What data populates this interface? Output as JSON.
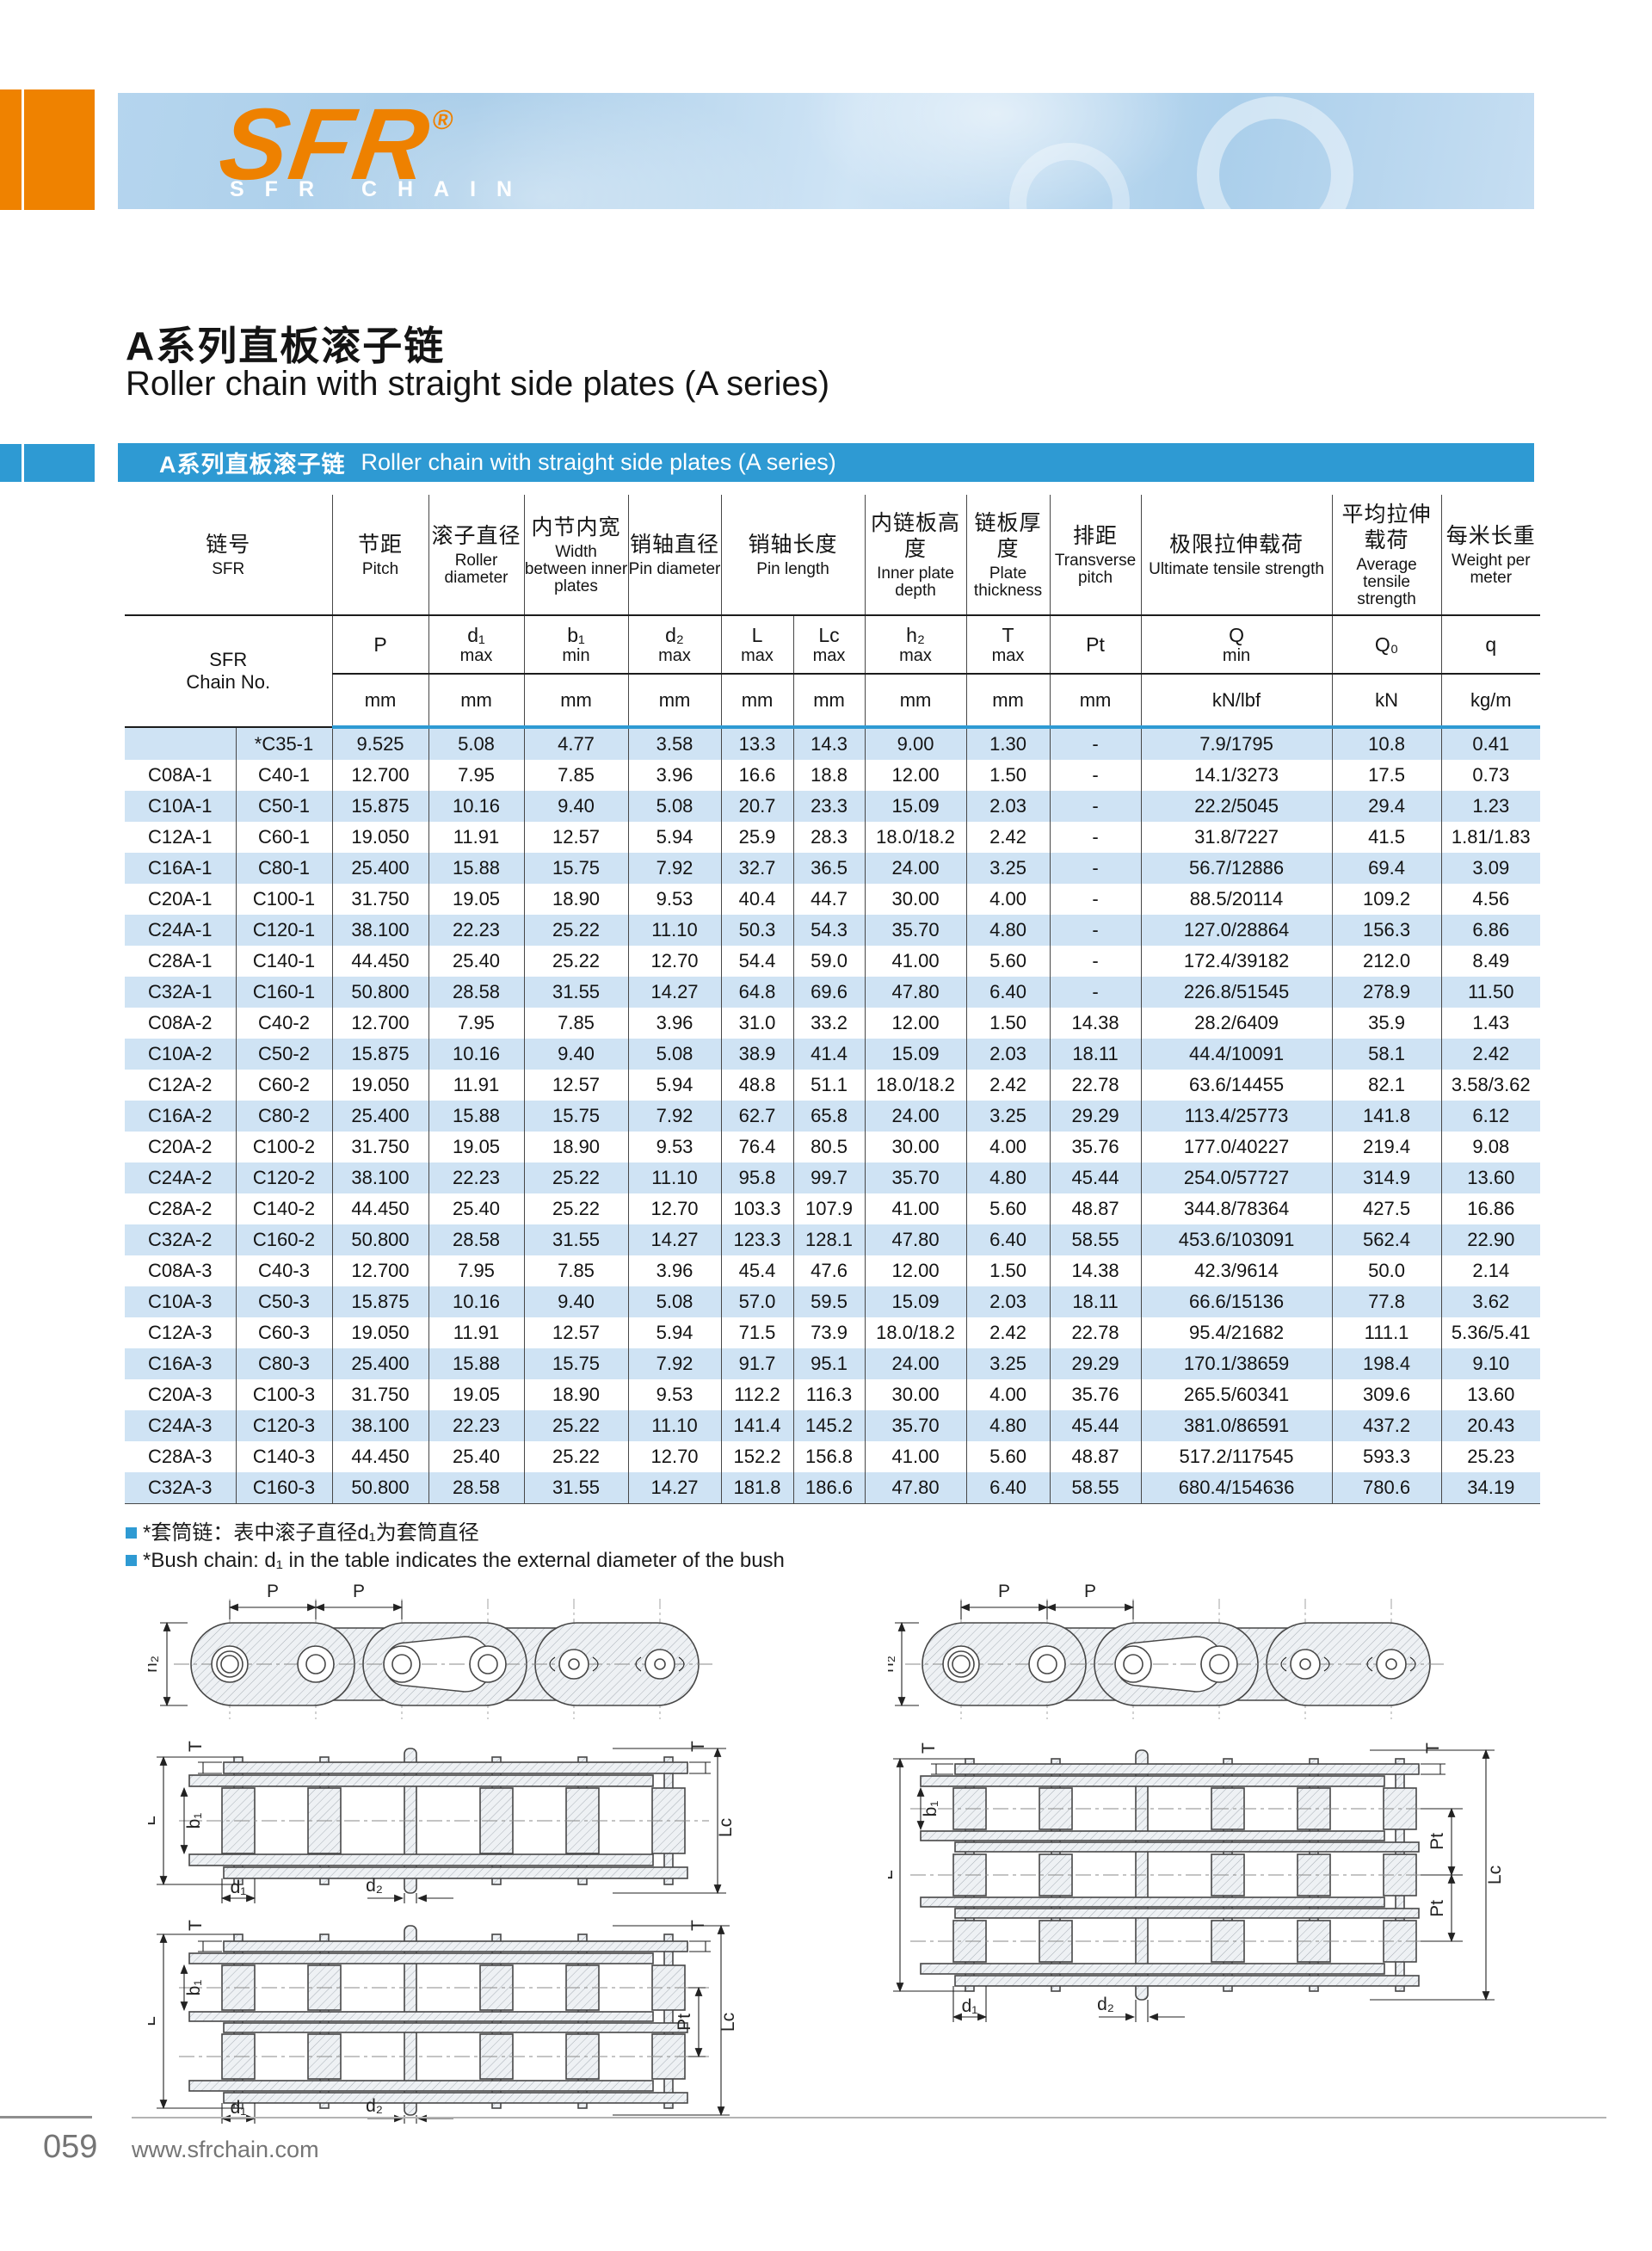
{
  "brand": {
    "logo": "SFR",
    "registered": "®",
    "tagline": "SFR CHAIN"
  },
  "title": {
    "zh": "A系列直板滚子链",
    "en": "Roller chain with straight side plates (A series)"
  },
  "section_bar": {
    "zh": "A系列直板滚子链",
    "en": "Roller chain with straight side plates (A series)"
  },
  "table": {
    "chain_header": {
      "zh": "链号",
      "en": "SFR",
      "sub_line1": "SFR",
      "sub_line2": "Chain No."
    },
    "cols": {
      "pitch": {
        "zh": "节距",
        "en": "Pitch",
        "sym": "P",
        "cond": "",
        "unit": "mm"
      },
      "roller": {
        "zh": "滚子直径",
        "en": "Roller diameter",
        "sym": "d₁",
        "cond": "max",
        "unit": "mm"
      },
      "inner_width": {
        "zh": "内节内宽",
        "en": "Width between inner plates",
        "sym": "b₁",
        "cond": "min",
        "unit": "mm"
      },
      "pin_dia": {
        "zh": "销轴直径",
        "en": "Pin diameter",
        "sym": "d₂",
        "cond": "max",
        "unit": "mm"
      },
      "pin_len": {
        "zh": "销轴长度",
        "en": "Pin length"
      },
      "pin_len_l": {
        "sym": "L",
        "cond": "max",
        "unit": "mm"
      },
      "pin_len_lc": {
        "sym": "Lc",
        "cond": "max",
        "unit": "mm"
      },
      "plate_depth": {
        "zh": "内链板高度",
        "en": "Inner plate depth",
        "sym": "h₂",
        "cond": "max",
        "unit": "mm"
      },
      "plate_thickness": {
        "zh": "链板厚度",
        "en": "Plate thickness",
        "sym": "T",
        "cond": "max",
        "unit": "mm"
      },
      "transverse_pitch": {
        "zh": "排距",
        "en": "Transverse pitch",
        "sym": "Pt",
        "cond": "",
        "unit": "mm"
      },
      "ultimate": {
        "zh": "极限拉伸载荷",
        "en": "Ultimate tensile strength",
        "sym": "Q",
        "cond": "min",
        "unit": "kN/lbf"
      },
      "average": {
        "zh": "平均拉伸载荷",
        "en": "Average tensile strength",
        "sym": "Q₀",
        "cond": "",
        "unit": "kN"
      },
      "weight": {
        "zh": "每米长重",
        "en": "Weight per meter",
        "sym": "q",
        "cond": "",
        "unit": "kg/m"
      }
    },
    "rows": [
      [
        "",
        "*C35-1",
        "9.525",
        "5.08",
        "4.77",
        "3.58",
        "13.3",
        "14.3",
        "9.00",
        "1.30",
        "-",
        "7.9/1795",
        "10.8",
        "0.41"
      ],
      [
        "C08A-1",
        "C40-1",
        "12.700",
        "7.95",
        "7.85",
        "3.96",
        "16.6",
        "18.8",
        "12.00",
        "1.50",
        "-",
        "14.1/3273",
        "17.5",
        "0.73"
      ],
      [
        "C10A-1",
        "C50-1",
        "15.875",
        "10.16",
        "9.40",
        "5.08",
        "20.7",
        "23.3",
        "15.09",
        "2.03",
        "-",
        "22.2/5045",
        "29.4",
        "1.23"
      ],
      [
        "C12A-1",
        "C60-1",
        "19.050",
        "11.91",
        "12.57",
        "5.94",
        "25.9",
        "28.3",
        "18.0/18.2",
        "2.42",
        "-",
        "31.8/7227",
        "41.5",
        "1.81/1.83"
      ],
      [
        "C16A-1",
        "C80-1",
        "25.400",
        "15.88",
        "15.75",
        "7.92",
        "32.7",
        "36.5",
        "24.00",
        "3.25",
        "-",
        "56.7/12886",
        "69.4",
        "3.09"
      ],
      [
        "C20A-1",
        "C100-1",
        "31.750",
        "19.05",
        "18.90",
        "9.53",
        "40.4",
        "44.7",
        "30.00",
        "4.00",
        "-",
        "88.5/20114",
        "109.2",
        "4.56"
      ],
      [
        "C24A-1",
        "C120-1",
        "38.100",
        "22.23",
        "25.22",
        "11.10",
        "50.3",
        "54.3",
        "35.70",
        "4.80",
        "-",
        "127.0/28864",
        "156.3",
        "6.86"
      ],
      [
        "C28A-1",
        "C140-1",
        "44.450",
        "25.40",
        "25.22",
        "12.70",
        "54.4",
        "59.0",
        "41.00",
        "5.60",
        "-",
        "172.4/39182",
        "212.0",
        "8.49"
      ],
      [
        "C32A-1",
        "C160-1",
        "50.800",
        "28.58",
        "31.55",
        "14.27",
        "64.8",
        "69.6",
        "47.80",
        "6.40",
        "-",
        "226.8/51545",
        "278.9",
        "11.50"
      ],
      [
        "C08A-2",
        "C40-2",
        "12.700",
        "7.95",
        "7.85",
        "3.96",
        "31.0",
        "33.2",
        "12.00",
        "1.50",
        "14.38",
        "28.2/6409",
        "35.9",
        "1.43"
      ],
      [
        "C10A-2",
        "C50-2",
        "15.875",
        "10.16",
        "9.40",
        "5.08",
        "38.9",
        "41.4",
        "15.09",
        "2.03",
        "18.11",
        "44.4/10091",
        "58.1",
        "2.42"
      ],
      [
        "C12A-2",
        "C60-2",
        "19.050",
        "11.91",
        "12.57",
        "5.94",
        "48.8",
        "51.1",
        "18.0/18.2",
        "2.42",
        "22.78",
        "63.6/14455",
        "82.1",
        "3.58/3.62"
      ],
      [
        "C16A-2",
        "C80-2",
        "25.400",
        "15.88",
        "15.75",
        "7.92",
        "62.7",
        "65.8",
        "24.00",
        "3.25",
        "29.29",
        "113.4/25773",
        "141.8",
        "6.12"
      ],
      [
        "C20A-2",
        "C100-2",
        "31.750",
        "19.05",
        "18.90",
        "9.53",
        "76.4",
        "80.5",
        "30.00",
        "4.00",
        "35.76",
        "177.0/40227",
        "219.4",
        "9.08"
      ],
      [
        "C24A-2",
        "C120-2",
        "38.100",
        "22.23",
        "25.22",
        "11.10",
        "95.8",
        "99.7",
        "35.70",
        "4.80",
        "45.44",
        "254.0/57727",
        "314.9",
        "13.60"
      ],
      [
        "C28A-2",
        "C140-2",
        "44.450",
        "25.40",
        "25.22",
        "12.70",
        "103.3",
        "107.9",
        "41.00",
        "5.60",
        "48.87",
        "344.8/78364",
        "427.5",
        "16.86"
      ],
      [
        "C32A-2",
        "C160-2",
        "50.800",
        "28.58",
        "31.55",
        "14.27",
        "123.3",
        "128.1",
        "47.80",
        "6.40",
        "58.55",
        "453.6/103091",
        "562.4",
        "22.90"
      ],
      [
        "C08A-3",
        "C40-3",
        "12.700",
        "7.95",
        "7.85",
        "3.96",
        "45.4",
        "47.6",
        "12.00",
        "1.50",
        "14.38",
        "42.3/9614",
        "50.0",
        "2.14"
      ],
      [
        "C10A-3",
        "C50-3",
        "15.875",
        "10.16",
        "9.40",
        "5.08",
        "57.0",
        "59.5",
        "15.09",
        "2.03",
        "18.11",
        "66.6/15136",
        "77.8",
        "3.62"
      ],
      [
        "C12A-3",
        "C60-3",
        "19.050",
        "11.91",
        "12.57",
        "5.94",
        "71.5",
        "73.9",
        "18.0/18.2",
        "2.42",
        "22.78",
        "95.4/21682",
        "111.1",
        "5.36/5.41"
      ],
      [
        "C16A-3",
        "C80-3",
        "25.400",
        "15.88",
        "15.75",
        "7.92",
        "91.7",
        "95.1",
        "24.00",
        "3.25",
        "29.29",
        "170.1/38659",
        "198.4",
        "9.10"
      ],
      [
        "C20A-3",
        "C100-3",
        "31.750",
        "19.05",
        "18.90",
        "9.53",
        "112.2",
        "116.3",
        "30.00",
        "4.00",
        "35.76",
        "265.5/60341",
        "309.6",
        "13.60"
      ],
      [
        "C24A-3",
        "C120-3",
        "38.100",
        "22.23",
        "25.22",
        "11.10",
        "141.4",
        "145.2",
        "35.70",
        "4.80",
        "45.44",
        "381.0/86591",
        "437.2",
        "20.43"
      ],
      [
        "C28A-3",
        "C140-3",
        "44.450",
        "25.40",
        "25.22",
        "12.70",
        "152.2",
        "156.8",
        "41.00",
        "5.60",
        "48.87",
        "517.2/117545",
        "593.3",
        "25.23"
      ],
      [
        "C32A-3",
        "C160-3",
        "50.800",
        "28.58",
        "31.55",
        "14.27",
        "181.8",
        "186.6",
        "47.80",
        "6.40",
        "58.55",
        "680.4/154636",
        "780.6",
        "34.19"
      ]
    ]
  },
  "notes": {
    "zh": "*套筒链：表中滚子直径d₁为套筒直径",
    "en": "*Bush chain: d₁ in the table indicates the external diameter of the bush"
  },
  "diagram_labels": {
    "P": "P",
    "h2": "h₂",
    "T": "T",
    "L": "L",
    "b1": "b₁",
    "Lc": "Lc",
    "d1": "d₁",
    "d2": "d₂",
    "Pt": "Pt"
  },
  "footer": {
    "page_number": "059",
    "website": "www.sfrchain.com"
  },
  "colors": {
    "accent_blue": "#2e9ad3",
    "row_blue": "#cfe3f4",
    "orange": "#ee8100"
  }
}
